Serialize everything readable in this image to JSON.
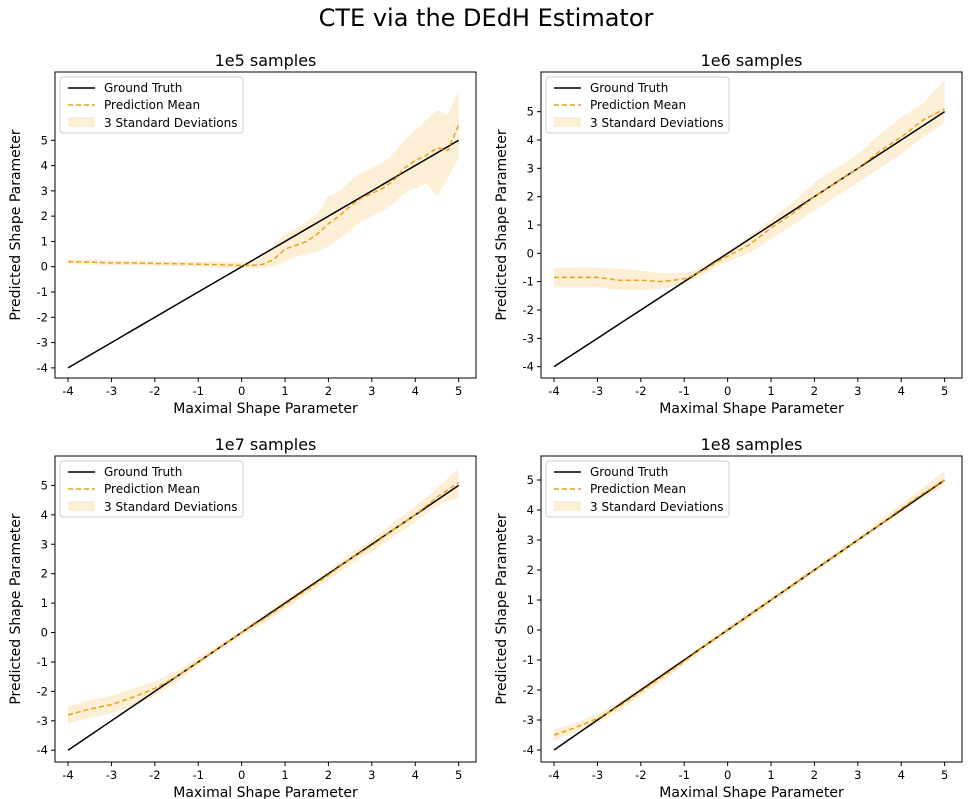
{
  "suptitle": "CTE via the DEdH Estimator",
  "colors": {
    "truth": "#000000",
    "mean": "#e8a317",
    "band": "#fdefd6"
  },
  "chart_data": [
    {
      "type": "line",
      "title": "1e5 samples",
      "xlabel": "Maximal Shape Parameter",
      "ylabel": "Predicted Shape Parameter",
      "xlim": [
        -4.3,
        5.4
      ],
      "ylim": [
        -4.4,
        7.7
      ],
      "xticks": [
        -4,
        -3,
        -2,
        -1,
        0,
        1,
        2,
        3,
        4,
        5
      ],
      "yticks": [
        -4,
        -3,
        -2,
        -1,
        0,
        1,
        2,
        3,
        4,
        5
      ],
      "grid": false,
      "legend": "top-left",
      "legend_labels": [
        "Ground Truth",
        "Prediction Mean",
        "3 Standard Deviations"
      ],
      "x": [
        -4,
        -3.5,
        -3,
        -2.5,
        -2,
        -1.5,
        -1,
        -0.5,
        0,
        0.25,
        0.5,
        0.75,
        1,
        1.25,
        1.5,
        1.75,
        2,
        2.25,
        2.5,
        2.75,
        3,
        3.25,
        3.5,
        3.75,
        4,
        4.25,
        4.5,
        4.75,
        5
      ],
      "series": [
        {
          "values": [
            -4,
            -3.5,
            -3,
            -2.5,
            -2,
            -1.5,
            -1,
            -0.5,
            0,
            0.25,
            0.5,
            0.75,
            1,
            1.25,
            1.5,
            1.75,
            2,
            2.25,
            2.5,
            2.75,
            3,
            3.25,
            3.5,
            3.75,
            4,
            4.25,
            4.5,
            4.75,
            5
          ]
        },
        {
          "values": [
            0.2,
            0.18,
            0.15,
            0.15,
            0.13,
            0.12,
            0.1,
            0.08,
            0.05,
            0.05,
            0.1,
            0.3,
            0.7,
            0.85,
            1.0,
            1.3,
            1.7,
            2.0,
            2.4,
            2.7,
            2.9,
            3.1,
            3.4,
            3.9,
            4.2,
            4.4,
            4.7,
            4.6,
            5.6
          ]
        }
      ],
      "band": {
        "lower": [
          0.1,
          0.08,
          0.05,
          0.05,
          0.03,
          0.02,
          0.0,
          -0.05,
          -0.05,
          -0.05,
          -0.05,
          0.0,
          0.2,
          0.4,
          0.5,
          0.6,
          0.8,
          1.1,
          1.4,
          1.8,
          2.0,
          2.2,
          2.5,
          2.9,
          3.1,
          3.3,
          2.8,
          3.5,
          4.3
        ],
        "upper": [
          0.3,
          0.28,
          0.25,
          0.25,
          0.23,
          0.22,
          0.2,
          0.2,
          0.2,
          0.2,
          0.4,
          0.9,
          1.3,
          1.5,
          1.8,
          2.1,
          2.8,
          3.0,
          3.4,
          3.7,
          3.9,
          4.1,
          4.5,
          5.0,
          5.4,
          5.8,
          6.2,
          6.0,
          7.0
        ]
      }
    },
    {
      "type": "line",
      "title": "1e6 samples",
      "xlabel": "Maximal Shape Parameter",
      "ylabel": "Predicted Shape Parameter",
      "xlim": [
        -4.3,
        5.4
      ],
      "ylim": [
        -4.4,
        6.4
      ],
      "xticks": [
        -4,
        -3,
        -2,
        -1,
        0,
        1,
        2,
        3,
        4,
        5
      ],
      "yticks": [
        -4,
        -3,
        -2,
        -1,
        0,
        1,
        2,
        3,
        4,
        5
      ],
      "grid": false,
      "legend": "top-left",
      "legend_labels": [
        "Ground Truth",
        "Prediction Mean",
        "3 Standard Deviations"
      ],
      "x": [
        -4,
        -3.5,
        -3,
        -2.5,
        -2,
        -1.5,
        -1,
        -0.75,
        -0.5,
        -0.25,
        0,
        0.5,
        1,
        1.5,
        2,
        2.5,
        3,
        3.5,
        4,
        4.5,
        5
      ],
      "series": [
        {
          "values": [
            -4,
            -3.5,
            -3,
            -2.5,
            -2,
            -1.5,
            -1,
            -0.75,
            -0.5,
            -0.25,
            0,
            0.5,
            1,
            1.5,
            2,
            2.5,
            3,
            3.5,
            4,
            4.5,
            5
          ]
        },
        {
          "values": [
            -0.85,
            -0.85,
            -0.85,
            -0.95,
            -0.95,
            -1.0,
            -0.9,
            -0.75,
            -0.55,
            -0.3,
            -0.1,
            0.3,
            0.9,
            1.4,
            2.0,
            2.5,
            3.0,
            3.6,
            4.1,
            4.7,
            5.1
          ]
        }
      ],
      "band": {
        "lower": [
          -1.2,
          -1.2,
          -1.2,
          -1.3,
          -1.3,
          -1.25,
          -1.1,
          -0.9,
          -0.7,
          -0.45,
          -0.3,
          0.0,
          0.5,
          1.0,
          1.5,
          2.0,
          2.5,
          3.0,
          3.5,
          4.1,
          4.6
        ],
        "upper": [
          -0.5,
          -0.5,
          -0.5,
          -0.55,
          -0.6,
          -0.7,
          -0.7,
          -0.6,
          -0.4,
          -0.15,
          0.1,
          0.6,
          1.2,
          1.8,
          2.5,
          3.0,
          3.5,
          4.2,
          4.8,
          5.3,
          6.1
        ]
      }
    },
    {
      "type": "line",
      "title": "1e7 samples",
      "xlabel": "Maximal Shape Parameter",
      "ylabel": "Predicted Shape Parameter",
      "xlim": [
        -4.3,
        5.4
      ],
      "ylim": [
        -4.4,
        6.0
      ],
      "xticks": [
        -4,
        -3,
        -2,
        -1,
        0,
        1,
        2,
        3,
        4,
        5
      ],
      "yticks": [
        -4,
        -3,
        -2,
        -1,
        0,
        1,
        2,
        3,
        4,
        5
      ],
      "grid": false,
      "legend": "top-left",
      "legend_labels": [
        "Ground Truth",
        "Prediction Mean",
        "3 Standard Deviations"
      ],
      "x": [
        -4,
        -3.5,
        -3,
        -2.5,
        -2,
        -1.5,
        -1,
        -0.5,
        0,
        0.5,
        1,
        1.5,
        2,
        2.5,
        3,
        3.5,
        4,
        4.5,
        5
      ],
      "series": [
        {
          "values": [
            -4,
            -3.5,
            -3,
            -2.5,
            -2,
            -1.5,
            -1,
            -0.5,
            0,
            0.5,
            1,
            1.5,
            2,
            2.5,
            3,
            3.5,
            4,
            4.5,
            5
          ]
        },
        {
          "values": [
            -2.8,
            -2.6,
            -2.45,
            -2.2,
            -1.9,
            -1.5,
            -1.0,
            -0.5,
            0.0,
            0.45,
            0.95,
            1.45,
            1.95,
            2.5,
            2.95,
            3.5,
            4.0,
            4.6,
            5.1
          ]
        }
      ],
      "band": {
        "lower": [
          -3.1,
          -2.9,
          -2.75,
          -2.5,
          -2.15,
          -1.7,
          -1.15,
          -0.6,
          -0.1,
          0.3,
          0.8,
          1.3,
          1.8,
          2.3,
          2.75,
          3.25,
          3.75,
          4.3,
          4.6
        ],
        "upper": [
          -2.5,
          -2.3,
          -2.15,
          -1.9,
          -1.65,
          -1.3,
          -0.85,
          -0.4,
          0.1,
          0.6,
          1.1,
          1.6,
          2.1,
          2.7,
          3.15,
          3.75,
          4.3,
          4.9,
          5.6
        ]
      }
    },
    {
      "type": "line",
      "title": "1e8 samples",
      "xlabel": "Maximal Shape Parameter",
      "ylabel": "Predicted Shape Parameter",
      "xlim": [
        -4.3,
        5.4
      ],
      "ylim": [
        -4.4,
        5.8
      ],
      "xticks": [
        -4,
        -3,
        -2,
        -1,
        0,
        1,
        2,
        3,
        4,
        5
      ],
      "yticks": [
        -4,
        -3,
        -2,
        -1,
        0,
        1,
        2,
        3,
        4,
        5
      ],
      "grid": false,
      "legend": "top-left",
      "legend_labels": [
        "Ground Truth",
        "Prediction Mean",
        "3 Standard Deviations"
      ],
      "x": [
        -4,
        -3.5,
        -3,
        -2.5,
        -2,
        -1.5,
        -1,
        -0.5,
        0,
        0.5,
        1,
        1.5,
        2,
        2.5,
        3,
        3.5,
        4,
        4.5,
        5
      ],
      "series": [
        {
          "values": [
            -4,
            -3.5,
            -3,
            -2.5,
            -2,
            -1.5,
            -1,
            -0.5,
            0,
            0.5,
            1,
            1.5,
            2,
            2.5,
            3,
            3.5,
            4,
            4.5,
            5
          ]
        },
        {
          "values": [
            -3.5,
            -3.25,
            -2.95,
            -2.55,
            -2.05,
            -1.55,
            -1.05,
            -0.5,
            0.0,
            0.5,
            1.0,
            1.5,
            2.0,
            2.5,
            3.0,
            3.5,
            4.05,
            4.55,
            5.0
          ]
        }
      ],
      "band": {
        "lower": [
          -3.7,
          -3.4,
          -3.1,
          -2.7,
          -2.2,
          -1.7,
          -1.15,
          -0.6,
          -0.1,
          0.35,
          0.9,
          1.4,
          1.9,
          2.4,
          2.9,
          3.4,
          3.9,
          4.4,
          4.8
        ],
        "upper": [
          -3.3,
          -3.1,
          -2.8,
          -2.4,
          -1.9,
          -1.4,
          -0.95,
          -0.4,
          0.1,
          0.6,
          1.1,
          1.6,
          2.1,
          2.6,
          3.1,
          3.65,
          4.2,
          4.75,
          5.3
        ]
      }
    }
  ]
}
